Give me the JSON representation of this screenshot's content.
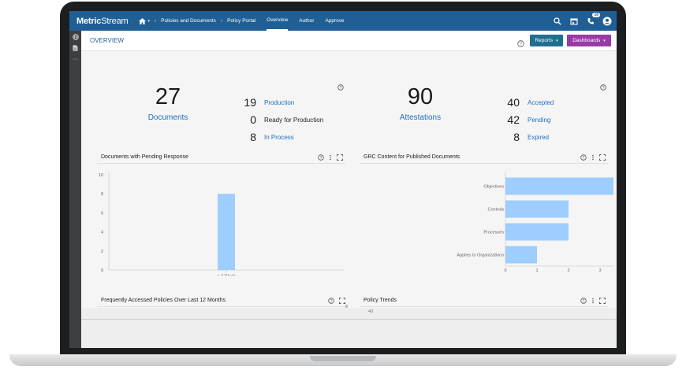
{
  "app": {
    "logo_bold": "Metric",
    "logo_rest": "Stream",
    "breadcrumb": [
      "Policies and Documents",
      "Policy Portal"
    ],
    "nav": [
      {
        "label": "Overview",
        "active": true
      },
      {
        "label": "Author",
        "active": false
      },
      {
        "label": "Approve",
        "active": false
      }
    ],
    "notification_count": "16",
    "icons": [
      "home-icon",
      "search-icon",
      "calendar-icon",
      "phone-icon",
      "user-avatar-icon"
    ]
  },
  "sidebar": {
    "icons": [
      "globe-icon",
      "document-icon",
      "more-icon"
    ]
  },
  "header": {
    "title": "OVERVIEW",
    "reports_label": "Reports",
    "dashboards_label": "Dashboards"
  },
  "documents": {
    "total": "27",
    "label": "Documents",
    "rows": [
      {
        "count": "19",
        "label": "Production"
      },
      {
        "count": "0",
        "label": "Ready for Production"
      },
      {
        "count": "8",
        "label": "In Process"
      }
    ]
  },
  "attestations": {
    "total": "90",
    "label": "Attestations",
    "rows": [
      {
        "count": "40",
        "label": "Accepted"
      },
      {
        "count": "42",
        "label": "Pending"
      },
      {
        "count": "8",
        "label": "Expired"
      }
    ]
  },
  "panels": {
    "pending_title": "Documents with Pending Response",
    "grc_title": "GRC Content for Published Documents",
    "frequent_title": "Frequently Accessed Policies Over Last 12 Months",
    "trends_title": "Policy Trends",
    "trends_first_tick": "40"
  },
  "colors": {
    "topbar": "#1f5f96",
    "link": "#1f6fbf",
    "reports": "#1f6f8f",
    "dashboards": "#9a3aa6",
    "bar": "#9ecdff"
  },
  "chart_data": [
    {
      "type": "bar",
      "title": "Documents with Pending Response",
      "categories": [
        "> 4 Week"
      ],
      "values": [
        8
      ],
      "ylim": [
        0,
        10
      ],
      "yticks": [
        0,
        2,
        4,
        6,
        8,
        10
      ]
    },
    {
      "type": "bar",
      "orientation": "horizontal",
      "title": "GRC Content for Published Documents",
      "categories": [
        "Objectives",
        "Controls",
        "Processes",
        "Applies to Organizations"
      ],
      "values": [
        4,
        2,
        2,
        1
      ],
      "xlim": [
        0,
        5
      ],
      "xticks": [
        0,
        1,
        2,
        3,
        4,
        5
      ]
    }
  ]
}
